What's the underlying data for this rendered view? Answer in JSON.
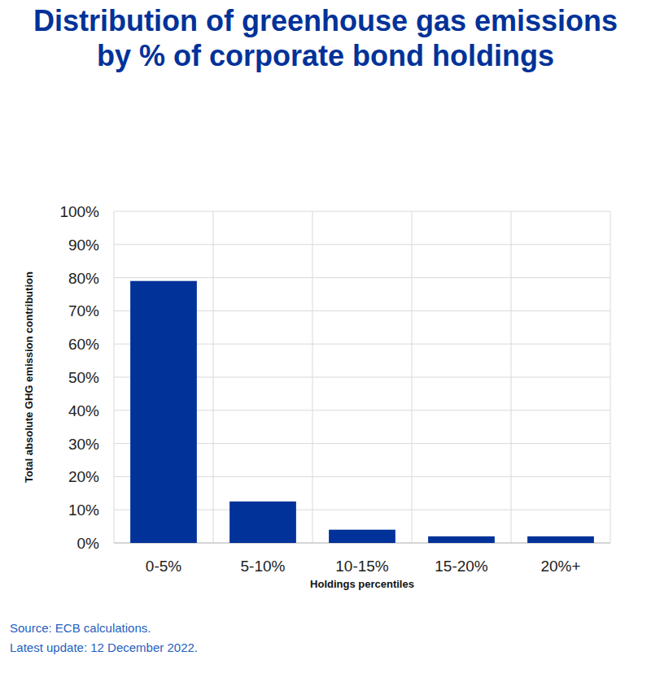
{
  "chart_data": {
    "type": "bar",
    "title": "Distribution of greenhouse gas emissions by % of corporate bond holdings",
    "x_label": "Holdings percentiles",
    "y_label": "Total absolute GHG emission contribution",
    "categories": [
      "0-5%",
      "5-10%",
      "10-15%",
      "15-20%",
      "20%+"
    ],
    "values": [
      79,
      12.5,
      4,
      2,
      2
    ],
    "color": "#003299",
    "ylim": [
      0,
      100
    ],
    "yticks": [
      {
        "value": 0,
        "label": "0%"
      },
      {
        "value": 10,
        "label": "10%"
      },
      {
        "value": 20,
        "label": "20%"
      },
      {
        "value": 30,
        "label": "30%"
      },
      {
        "value": 40,
        "label": "40%"
      },
      {
        "value": 50,
        "label": "50%"
      },
      {
        "value": 60,
        "label": "60%"
      },
      {
        "value": 70,
        "label": "70%"
      },
      {
        "value": 80,
        "label": "80%"
      },
      {
        "value": 90,
        "label": "90%"
      },
      {
        "value": 100,
        "label": "100%"
      }
    ],
    "grid": true,
    "source_note": [
      "Source: ECB calculations.",
      "Latest update: 12 December 2022."
    ]
  }
}
